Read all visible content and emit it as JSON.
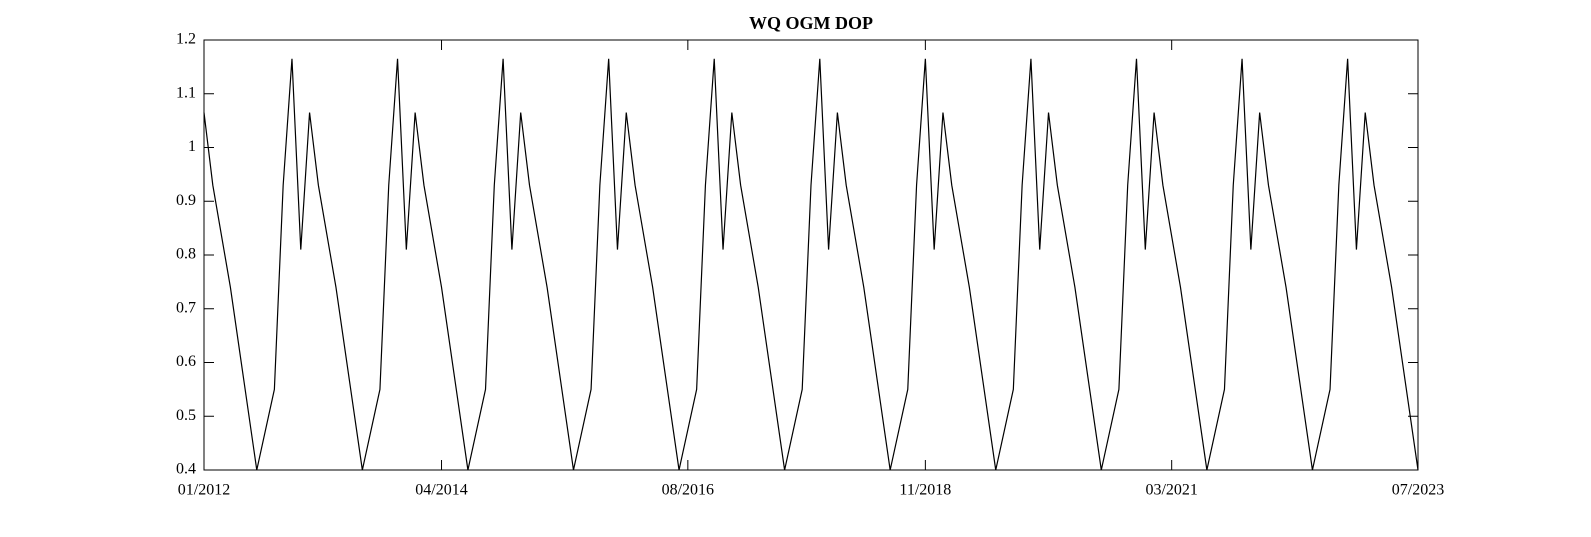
{
  "chart_data": {
    "type": "line",
    "title": "WQ OGM DOP",
    "x": [
      "01/2012",
      "02/2012",
      "04/2012",
      "07/2012",
      "09/2012",
      "10/2012",
      "11/2012",
      "12/2012",
      "01/2013",
      "02/2013",
      "04/2013",
      "07/2013",
      "09/2013",
      "10/2013",
      "11/2013",
      "12/2013",
      "01/2014",
      "02/2014",
      "04/2014",
      "07/2014",
      "09/2014",
      "10/2014",
      "11/2014",
      "12/2014",
      "01/2015",
      "02/2015",
      "04/2015",
      "07/2015",
      "09/2015",
      "10/2015",
      "11/2015",
      "12/2015",
      "01/2016",
      "02/2016",
      "04/2016",
      "07/2016",
      "09/2016",
      "10/2016",
      "11/2016",
      "12/2016",
      "01/2017",
      "02/2017",
      "04/2017",
      "07/2017",
      "09/2017",
      "10/2017",
      "11/2017",
      "12/2017",
      "01/2018",
      "02/2018",
      "04/2018",
      "07/2018",
      "09/2018",
      "10/2018",
      "11/2018",
      "12/2018",
      "01/2019",
      "02/2019",
      "04/2019",
      "07/2019",
      "09/2019",
      "10/2019",
      "11/2019",
      "12/2019",
      "01/2020",
      "02/2020",
      "04/2020",
      "07/2020",
      "09/2020",
      "10/2020",
      "11/2020",
      "12/2020",
      "01/2021",
      "02/2021",
      "04/2021",
      "07/2021",
      "09/2021",
      "10/2021",
      "11/2021",
      "12/2021",
      "01/2022",
      "02/2022",
      "04/2022",
      "07/2022",
      "09/2022",
      "10/2022",
      "11/2022",
      "12/2022",
      "01/2023",
      "02/2023",
      "04/2023",
      "07/2023"
    ],
    "series": [
      {
        "color": "#000000",
        "values": [
          1.065,
          0.93,
          0.74,
          0.4,
          0.55,
          0.93,
          1.165,
          0.81,
          1.065,
          0.93,
          0.74,
          0.4,
          0.55,
          0.93,
          1.165,
          0.81,
          1.065,
          0.93,
          0.74,
          0.4,
          0.55,
          0.93,
          1.165,
          0.81,
          1.065,
          0.93,
          0.74,
          0.4,
          0.55,
          0.93,
          1.165,
          0.81,
          1.065,
          0.93,
          0.74,
          0.4,
          0.55,
          0.93,
          1.165,
          0.81,
          1.065,
          0.93,
          0.74,
          0.4,
          0.55,
          0.93,
          1.165,
          0.81,
          1.065,
          0.93,
          0.74,
          0.4,
          0.55,
          0.93,
          1.165,
          0.81,
          1.065,
          0.93,
          0.74,
          0.4,
          0.55,
          0.93,
          1.165,
          0.81,
          1.065,
          0.93,
          0.74,
          0.4,
          0.55,
          0.93,
          1.165,
          0.81,
          1.065,
          0.93,
          0.74,
          0.4,
          0.55,
          0.93,
          1.165,
          0.81,
          1.065,
          0.93,
          0.74,
          0.4,
          0.55,
          0.93,
          1.165,
          0.81,
          1.065,
          0.93,
          0.74,
          0.4
        ]
      }
    ],
    "xlim": [
      "01/2012",
      "07/2023"
    ],
    "xticks": [
      "01/2012",
      "04/2014",
      "08/2016",
      "11/2018",
      "03/2021",
      "07/2023"
    ],
    "ylim": [
      0.4,
      1.2
    ],
    "yticks": [
      0.4,
      0.5,
      0.6,
      0.7,
      0.8,
      0.9,
      1,
      1.1,
      1.2
    ],
    "grid": false
  }
}
